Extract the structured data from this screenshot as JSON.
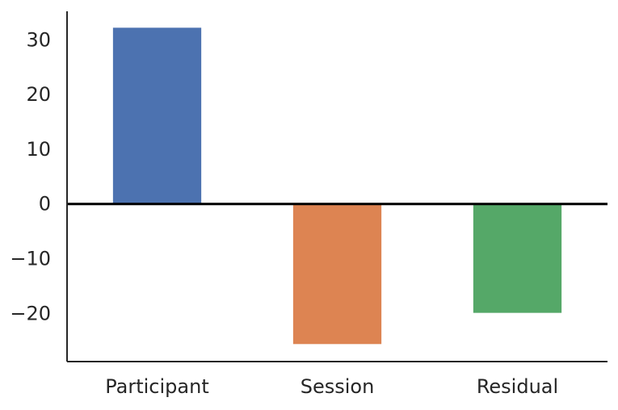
{
  "chart_data": {
    "type": "bar",
    "title": "",
    "xlabel": "",
    "ylabel": "",
    "categories": [
      "Participant",
      "Session",
      "Residual"
    ],
    "values": [
      32.2,
      -25.6,
      -19.9
    ],
    "colors": [
      "#4c72b0",
      "#dd8452",
      "#55a868"
    ],
    "ylim": [
      -28.8,
      35.2
    ],
    "yticks": [
      30,
      20,
      10,
      0,
      -10,
      -20
    ],
    "ytick_labels": [
      "30",
      "20",
      "10",
      "0",
      "−10",
      "−20"
    ],
    "grid": false,
    "legend": false,
    "zero_line": true
  }
}
